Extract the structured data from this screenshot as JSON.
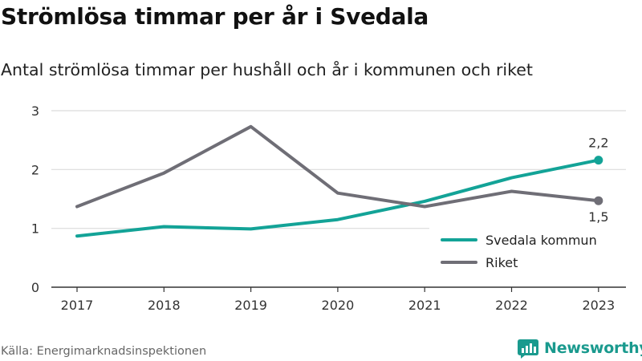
{
  "title": "Strömlösa timmar per år i Svedala",
  "subtitle": "Antal strömlösa timmar per hushåll och år i kommunen och riket",
  "source": "Källa: Energimarknadsinspektionen",
  "brand": {
    "name": "Newsworthy",
    "icon": "newsworthy-logo-icon",
    "color": "#1a9a8e"
  },
  "chart_data": {
    "type": "line",
    "x": [
      "2017",
      "2018",
      "2019",
      "2020",
      "2021",
      "2022",
      "2023"
    ],
    "yticks": [
      "0",
      "1",
      "2",
      "3"
    ],
    "ylim": [
      0,
      3
    ],
    "grid": true,
    "legend_position": "bottom-right",
    "series": [
      {
        "name": "Svedala kommun",
        "color": "#13a397",
        "values": [
          0.87,
          1.03,
          0.99,
          1.15,
          1.46,
          1.86,
          2.16
        ],
        "end_label": "2,2",
        "end_label_position": "above"
      },
      {
        "name": "Riket",
        "color": "#6f6e76",
        "values": [
          1.37,
          1.94,
          2.73,
          1.6,
          1.37,
          1.63,
          1.47
        ],
        "end_label": "1,5",
        "end_label_position": "below"
      }
    ]
  }
}
